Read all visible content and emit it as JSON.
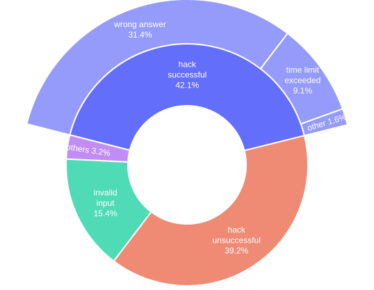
{
  "chart_data": {
    "type": "sunburst",
    "inner": [
      {
        "label_lines": [
          "hack",
          "successful"
        ],
        "value_text": "42.1%",
        "value": 42.1,
        "color": "#636efa",
        "children": [
          {
            "label_lines": [
              "wrong answer"
            ],
            "value_text": "31.4%",
            "value": 31.4,
            "color": "#949bfa"
          },
          {
            "label_lines": [
              "time limit",
              "exceeded"
            ],
            "value_text": "9.1%",
            "value": 9.1,
            "color": "#949bfa"
          },
          {
            "label_lines": [
              "other"
            ],
            "value_text": "1.6%",
            "value": 1.6,
            "color": "#949bfa"
          }
        ]
      },
      {
        "label_lines": [
          "hack",
          "unsuccessful"
        ],
        "value_text": "39.2%",
        "value": 39.2,
        "color": "#ef8a74",
        "children": []
      },
      {
        "label_lines": [
          "invalid",
          "input"
        ],
        "value_text": "15.4%",
        "value": 15.4,
        "color": "#4fdbb5",
        "children": []
      },
      {
        "label_lines": [
          "others"
        ],
        "value_text": "3.2%",
        "value": 3.2,
        "color": "#c28cf5",
        "children": []
      }
    ]
  }
}
